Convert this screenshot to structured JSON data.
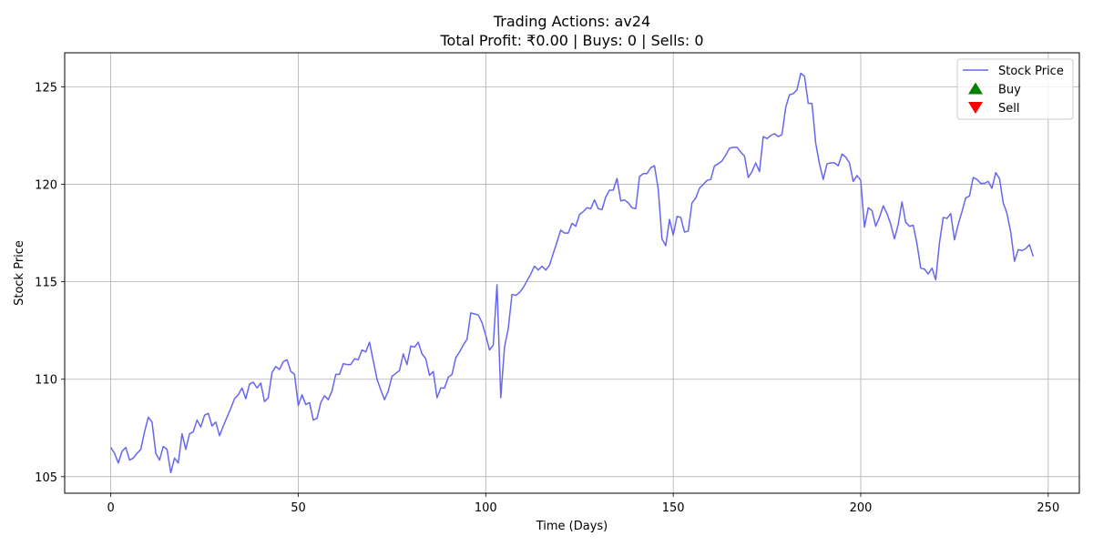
{
  "chart_data": {
    "type": "line",
    "title": "Trading Actions: av24",
    "subtitle": "Total Profit: ₹0.00 | Buys: 0 | Sells: 0",
    "xlabel": "Time (Days)",
    "ylabel": "Stock Price",
    "xlim": [
      -12.3,
      258.3
    ],
    "ylim": [
      104.15,
      126.75
    ],
    "x_ticks": [
      0,
      50,
      100,
      150,
      200,
      250
    ],
    "y_ticks": [
      105,
      110,
      115,
      120,
      125
    ],
    "grid": true,
    "legend_position": "top-right",
    "legend": [
      {
        "label": "Stock Price",
        "kind": "line",
        "color": "#6666ee"
      },
      {
        "label": "Buy",
        "kind": "triangle-up",
        "color": "#008000"
      },
      {
        "label": "Sell",
        "kind": "triangle-down",
        "color": "#ff0000"
      }
    ],
    "series": [
      {
        "name": "Stock Price",
        "color": "#6666ee",
        "x_start": 0,
        "x_step": 1,
        "values": [
          106.5,
          106.2,
          105.7,
          106.3,
          106.5,
          105.85,
          105.95,
          106.2,
          106.4,
          107.3,
          108.05,
          107.8,
          106.2,
          105.85,
          106.55,
          106.4,
          105.2,
          105.95,
          105.7,
          107.2,
          106.4,
          107.2,
          107.3,
          107.9,
          107.55,
          108.15,
          108.25,
          107.6,
          107.8,
          107.1,
          107.6,
          108.05,
          108.5,
          109.0,
          109.2,
          109.55,
          109.0,
          109.75,
          109.85,
          109.55,
          109.8,
          108.85,
          109.05,
          110.35,
          110.65,
          110.5,
          110.9,
          111.0,
          110.4,
          110.25,
          108.65,
          109.2,
          108.7,
          108.8,
          107.9,
          108.0,
          108.8,
          109.15,
          108.95,
          109.4,
          110.25,
          110.25,
          110.8,
          110.75,
          110.75,
          111.05,
          111.0,
          111.5,
          111.4,
          111.9,
          110.95,
          110.0,
          109.45,
          108.95,
          109.4,
          110.15,
          110.3,
          110.45,
          111.3,
          110.75,
          111.7,
          111.65,
          111.9,
          111.3,
          111.05,
          110.2,
          110.4,
          109.05,
          109.55,
          109.55,
          110.1,
          110.25,
          111.1,
          111.4,
          111.75,
          112.05,
          113.4,
          113.35,
          113.3,
          112.9,
          112.25,
          111.5,
          111.75,
          114.85,
          109.05,
          111.65,
          112.6,
          114.35,
          114.3,
          114.45,
          114.7,
          115.05,
          115.4,
          115.8,
          115.6,
          115.8,
          115.6,
          115.85,
          116.45,
          117.05,
          117.65,
          117.5,
          117.5,
          118.0,
          117.85,
          118.45,
          118.6,
          118.8,
          118.75,
          119.2,
          118.75,
          118.7,
          119.35,
          119.7,
          119.7,
          120.3,
          119.15,
          119.2,
          119.05,
          118.8,
          118.75,
          120.4,
          120.55,
          120.55,
          120.85,
          120.95,
          119.75,
          117.2,
          116.85,
          118.2,
          117.4,
          118.35,
          118.3,
          117.55,
          117.6,
          119.05,
          119.3,
          119.8,
          120.0,
          120.2,
          120.25,
          120.95,
          121.05,
          121.2,
          121.5,
          121.85,
          121.9,
          121.9,
          121.65,
          121.45,
          120.35,
          120.65,
          121.1,
          120.65,
          122.45,
          122.35,
          122.5,
          122.6,
          122.45,
          122.55,
          123.95,
          124.6,
          124.65,
          124.85,
          125.7,
          125.55,
          124.15,
          124.15,
          122.1,
          121.05,
          120.25,
          121.05,
          121.1,
          121.1,
          120.95,
          121.55,
          121.4,
          121.1,
          120.15,
          120.45,
          120.2,
          117.8,
          118.8,
          118.65,
          117.85,
          118.3,
          118.9,
          118.5,
          117.95,
          117.2,
          117.95,
          119.1,
          118.05,
          117.85,
          117.9,
          116.95,
          115.7,
          115.65,
          115.4,
          115.7,
          115.1,
          117.0,
          118.3,
          118.25,
          118.5,
          117.15,
          117.95,
          118.6,
          119.3,
          119.4,
          120.35,
          120.25,
          120.05,
          120.05,
          120.15,
          119.8,
          120.6,
          120.3,
          119.05,
          118.5,
          117.55,
          116.05,
          116.65,
          116.6,
          116.7,
          116.9,
          116.3
        ]
      }
    ]
  }
}
